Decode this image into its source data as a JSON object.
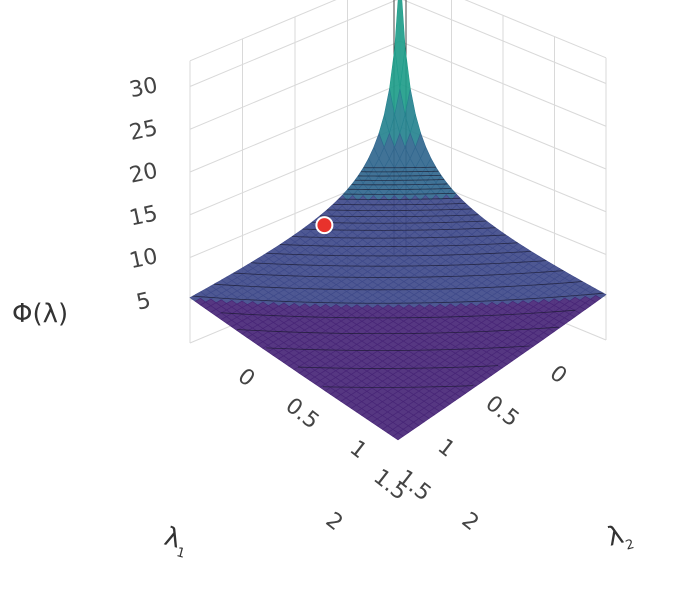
{
  "chart_data": {
    "type": "surface",
    "title": "",
    "zlabel": "Φ(λ)",
    "xlabel": "λ",
    "xlabel_sub": "1",
    "ylabel": "λ",
    "ylabel_sub": "2",
    "x_range": [
      0,
      2
    ],
    "y_range": [
      0,
      2
    ],
    "z_range": [
      0,
      33
    ],
    "x_ticks": [
      "0",
      "0.5",
      "1",
      "1.5",
      "2"
    ],
    "y_ticks": [
      "0",
      "0.5",
      "1",
      "1.5",
      "2"
    ],
    "z_ticks": [
      "5",
      "10",
      "15",
      "20",
      "25",
      "30"
    ],
    "grid": true,
    "colorscale": "viridis",
    "contours": "z",
    "surface_samples": {
      "corner_lambda1_0_lambda2_0": 33,
      "edge_lambda1_2_lambda2_0": 5.8,
      "edge_lambda1_0_lambda2_2": 5.8,
      "corner_lambda1_2_lambda2_2": 3.4
    },
    "marker": {
      "lambda1": 0.72,
      "lambda2": 0.0,
      "phi": 7.2,
      "color": "#e8322c"
    }
  }
}
